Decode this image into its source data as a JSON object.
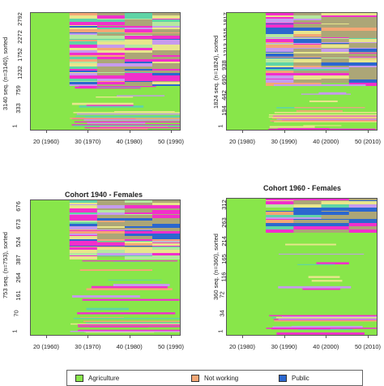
{
  "colors": {
    "agriculture": "#88e64a",
    "not_working": "#f4a775",
    "public": "#2b67cf",
    "pink": "#f22fcb",
    "lavender": "#c69bee",
    "yellow": "#e8e68c",
    "teal": "#5fd4a6",
    "lightgreen": "#b5e8a0"
  },
  "legend": [
    {
      "label": "Agriculture",
      "color": "#88e64a"
    },
    {
      "label": "Not working",
      "color": "#f4a775"
    },
    {
      "label": "Public",
      "color": "#2b67cf"
    }
  ],
  "chart_data": [
    {
      "type": "heatmap",
      "title": "",
      "ylabel": "3140 seq. (n=3140), sorted",
      "y_ticks": [
        "1",
        "333",
        "759",
        "1232",
        "1752",
        "2272",
        "2792"
      ],
      "x_ticks": [
        "20 (1960)",
        "30 (1970)",
        "40 (1980)",
        "50 (1990)"
      ],
      "n_sequences": 3140,
      "ylim": [
        1,
        3140
      ]
    },
    {
      "type": "heatmap",
      "title": "",
      "ylabel": "1824 seq. (n=1824), sorted",
      "y_ticks": [
        "1",
        "194",
        "442",
        "690",
        "938",
        "1213",
        "1515",
        "1817"
      ],
      "x_ticks": [
        "20 (1980)",
        "30 (1990)",
        "40 (2000)",
        "50 (2010)"
      ],
      "n_sequences": 1824,
      "ylim": [
        1,
        1824
      ]
    },
    {
      "type": "heatmap",
      "title": "Cohort 1940 - Females",
      "ylabel": "753 seq. (n=753), sorted",
      "y_ticks": [
        "1",
        "70",
        "161",
        "264",
        "387",
        "524",
        "673",
        "676"
      ],
      "x_ticks": [
        "20 (1960)",
        "30 (1970)",
        "40 (1980)",
        "50 (1990)"
      ],
      "n_sequences": 753,
      "ylim": [
        1,
        753
      ]
    },
    {
      "type": "heatmap",
      "title": "Cohort 1960 - Females",
      "ylabel": "360 seq. (n=360), sorted",
      "y_ticks": [
        "1",
        "34",
        "72",
        "116",
        "165",
        "214",
        "263",
        "312"
      ],
      "x_ticks": [
        "20 (1980)",
        "30 (1990)",
        "40 (2000)",
        "50 (2010)"
      ],
      "n_sequences": 360,
      "ylim": [
        1,
        360
      ]
    }
  ]
}
